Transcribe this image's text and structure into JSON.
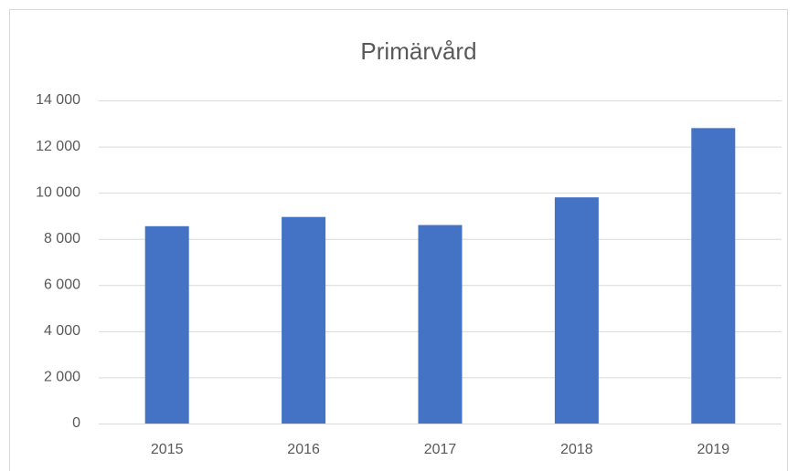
{
  "chart_data": {
    "type": "bar",
    "title": "Primärvård",
    "categories": [
      "2015",
      "2016",
      "2017",
      "2018",
      "2019"
    ],
    "values": [
      8550,
      8950,
      8600,
      9800,
      12800
    ],
    "color": "#4472c4",
    "ylim": [
      0,
      14000
    ],
    "yticks": [
      0,
      {
        "value": 2000,
        "label": "2 000"
      },
      {
        "value": 4000,
        "label": "4 000"
      },
      {
        "value": 6000,
        "label": "6 000"
      },
      {
        "value": 8000,
        "label": "8 000"
      },
      {
        "value": 10000,
        "label": "10 000"
      },
      {
        "value": 12000,
        "label": "12 000"
      },
      {
        "value": 14000,
        "label": "14 000"
      }
    ],
    "grid": true
  }
}
